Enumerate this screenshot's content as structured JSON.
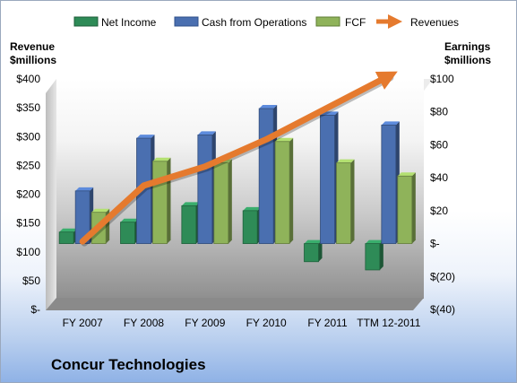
{
  "company_name": "Concur Technologies",
  "chart_data": {
    "type": "bar",
    "categories": [
      "FY 2007",
      "FY 2008",
      "FY 2009",
      "FY 2010",
      "FY 2011",
      "TTM 12-2011"
    ],
    "series": [
      {
        "name": "Net Income",
        "axis": "right",
        "color": "#2e8b57",
        "values": [
          7,
          13,
          23,
          20,
          -11,
          -16
        ]
      },
      {
        "name": "Cash from Operations",
        "axis": "right",
        "color": "#4a6fb0",
        "values": [
          32,
          64,
          66,
          82,
          78,
          72
        ]
      },
      {
        "name": "FCF",
        "axis": "right",
        "color": "#8fb35a",
        "values": [
          19,
          50,
          49,
          62,
          49,
          41
        ]
      },
      {
        "name": "Revenues",
        "axis": "left",
        "type": "line",
        "color": "#e57a2e",
        "values": [
          118,
          215,
          248,
          295,
          350,
          405
        ]
      }
    ],
    "left_axis": {
      "label_line1": "Revenue",
      "label_line2": "$millions",
      "ylim": [
        0,
        400
      ],
      "ticks": [
        "$-",
        "$50",
        "$100",
        "$150",
        "$200",
        "$250",
        "$300",
        "$350",
        "$400"
      ]
    },
    "right_axis": {
      "label_line1": "Earnings",
      "label_line2": "$millions",
      "ylim": [
        -40,
        100
      ],
      "ticks": [
        "$(40)",
        "$(20)",
        "$-",
        "$20",
        "$40",
        "$60",
        "$80",
        "$100"
      ]
    },
    "grid": false,
    "legend_position": "top"
  }
}
